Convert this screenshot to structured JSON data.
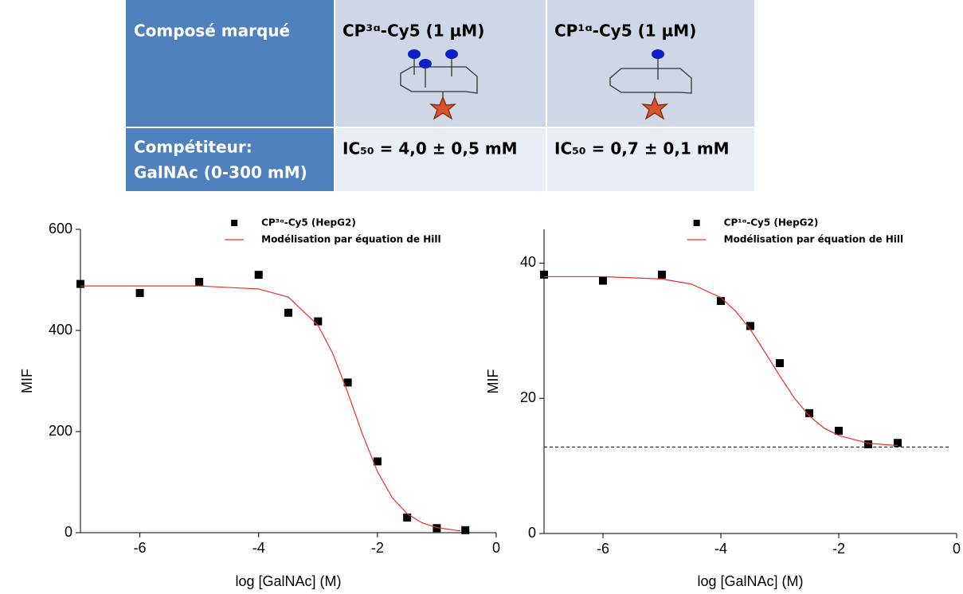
{
  "table": {
    "rows": [
      [
        "Composé marqué",
        "CP³ᵅ-Cy5 (1 µM)",
        "CP¹ᵅ-Cy5 (1 µM)"
      ],
      [
        [
          "Compétiteur:",
          "GalNAc (0-300 mM)"
        ],
        "IC₅₀ = 4,0 ± 0,5 mM",
        "IC₅₀ = 0,7 ± 0,1 mM"
      ]
    ]
  },
  "chart_data": [
    {
      "type": "scatter",
      "xlabel": "log [GalNAc] (M)",
      "ylabel": "MIF",
      "xlim": [
        -7,
        0
      ],
      "xticks": [
        -6,
        -4,
        -2,
        0
      ],
      "ylim": [
        0,
        600
      ],
      "yticks": [
        0,
        200,
        400,
        600
      ],
      "legend": "upper center",
      "series": [
        {
          "name": "CP³ᵅ-Cy5 (HepG2)",
          "type": "scatter",
          "color": "#000000",
          "x": [
            -7,
            -6,
            -5,
            -4,
            -3.5,
            -3,
            -2.5,
            -2,
            -1.5,
            -1,
            -0.52
          ],
          "values": [
            492,
            474,
            496,
            510,
            435,
            418,
            297,
            141,
            30,
            9,
            5
          ]
        },
        {
          "name": "Modélisation par équation de Hill",
          "type": "line",
          "color": "#e8302b",
          "x": [
            -7,
            -5,
            -4,
            -3.5,
            -3,
            -2.75,
            -2.5,
            -2.25,
            -2,
            -1.75,
            -1.5,
            -1.25,
            -1,
            -0.6
          ],
          "values": [
            488,
            488,
            482,
            466,
            410,
            354,
            277,
            194,
            121,
            69,
            37.5,
            19.5,
            10,
            3.4
          ]
        }
      ]
    },
    {
      "type": "scatter",
      "xlabel": "log [GalNAc] (M)",
      "ylabel": "MIF",
      "xlim": [
        -7,
        0
      ],
      "xticks": [
        -6,
        -4,
        -2,
        0
      ],
      "ylim": [
        0,
        45
      ],
      "yticks": [
        0,
        20,
        40
      ],
      "legend": "upper center",
      "hline": 12.8,
      "series": [
        {
          "name": "CP¹ᵅ-Cy5 (HepG2)",
          "type": "scatter",
          "color": "#000000",
          "x": [
            -7,
            -6,
            -5,
            -4,
            -3.5,
            -3,
            -2.5,
            -2,
            -1.5,
            -1
          ],
          "values": [
            38.3,
            37.4,
            38.3,
            34.4,
            30.7,
            25.2,
            17.8,
            15.2,
            13.2,
            13.4
          ]
        },
        {
          "name": "Modélisation par équation de Hill",
          "type": "line",
          "color": "#e8302b",
          "x": [
            -7,
            -6,
            -5,
            -4.5,
            -4,
            -3.75,
            -3.5,
            -3.25,
            -3,
            -2.75,
            -2.5,
            -2.25,
            -2,
            -1.5,
            -1
          ],
          "values": [
            38,
            38,
            37.65,
            36.9,
            34.9,
            32.9,
            30.2,
            26.8,
            23.3,
            20,
            17.4,
            15.6,
            14.5,
            13.35,
            13
          ]
        }
      ]
    }
  ]
}
